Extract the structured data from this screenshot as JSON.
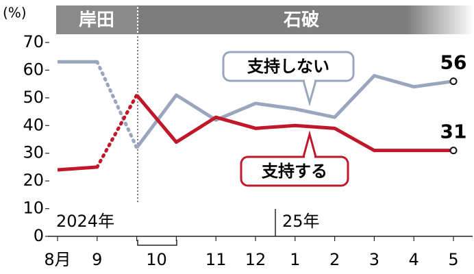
{
  "chart_data": {
    "type": "line",
    "y_unit": "(%)",
    "eras": [
      "岸田",
      "石破"
    ],
    "year_labels": [
      "2024年",
      "25年"
    ],
    "categories": [
      "8月",
      "9",
      null,
      "10",
      "11",
      "12",
      "1",
      "2",
      "3",
      "4",
      "5"
    ],
    "series": [
      {
        "name": "支持しない",
        "color": "#9aa6bd",
        "values": [
          63,
          63,
          32,
          51,
          42,
          48,
          46,
          43,
          58,
          54,
          56
        ]
      },
      {
        "name": "支持する",
        "color": "#c0172a",
        "values": [
          24,
          25,
          51,
          34,
          43,
          39,
          40,
          39,
          31,
          31,
          31
        ]
      }
    ],
    "ylim": [
      0,
      70
    ],
    "yticks": [
      0,
      10,
      20,
      30,
      40,
      50,
      60,
      70
    ]
  }
}
